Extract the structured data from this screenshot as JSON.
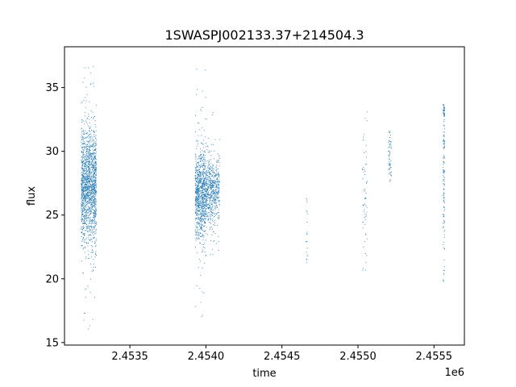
{
  "chart_data": {
    "type": "scatter",
    "title": "1SWASPJ002133.37+214504.3",
    "xlabel": "time",
    "ylabel": "flux",
    "x_offset_label": "1e6",
    "xlim": [
      2.45307,
      2.4557
    ],
    "ylim": [
      14.8,
      38.2
    ],
    "xticks": [
      2.4535,
      2.454,
      2.4545,
      2.455,
      2.4555
    ],
    "xtick_labels": [
      "2.4535",
      "2.4540",
      "2.4545",
      "2.4550",
      "2.4555"
    ],
    "yticks": [
      15,
      20,
      25,
      30,
      35
    ],
    "ytick_labels": [
      "15",
      "20",
      "25",
      "30",
      "35"
    ],
    "grid": false,
    "legend": "none",
    "point_color": "#1f77b4",
    "series": [
      {
        "clusters": [
          {
            "x_range": [
              2.45318,
              2.45328
            ],
            "y_center": 27.2,
            "y_spread": 2.3,
            "y_min": 16.0,
            "y_max": 37.2,
            "count": 1600
          },
          {
            "x_range": [
              2.45393,
              2.454
            ],
            "y_center": 26.6,
            "y_spread": 1.7,
            "y_min": 16.8,
            "y_max": 36.9,
            "count": 900
          },
          {
            "x_range": [
              2.454,
              2.45409
            ],
            "y_center": 27.0,
            "y_spread": 1.3,
            "y_min": 21.0,
            "y_max": 33.2,
            "count": 600
          },
          {
            "x_range": [
              2.45466,
              2.45467
            ],
            "y_center": 23.5,
            "y_spread": 2.0,
            "y_min": 20.8,
            "y_max": 26.3,
            "count": 20
          },
          {
            "x_range": [
              2.45503,
              2.45506
            ],
            "y_center": 26.5,
            "y_spread": 3.5,
            "y_min": 20.5,
            "y_max": 33.2,
            "count": 60
          },
          {
            "x_range": [
              2.4552,
              2.45522
            ],
            "y_center": 29.5,
            "y_spread": 1.2,
            "y_min": 27.6,
            "y_max": 31.6,
            "count": 60
          },
          {
            "x_range": [
              2.45556,
              2.45557
            ],
            "y_center": 29.0,
            "y_spread": 5.0,
            "y_min": 19.8,
            "y_max": 33.7,
            "count": 160
          }
        ]
      }
    ]
  }
}
